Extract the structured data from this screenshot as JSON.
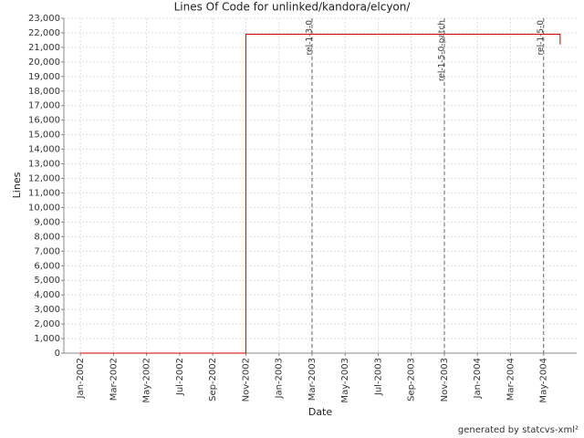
{
  "chart_data": {
    "type": "line",
    "title": "Lines Of Code for unlinked/kandora/elcyon/",
    "x_label": "Date",
    "y_label": "Lines",
    "footer": "generated by statcvs-xml²",
    "x": [
      "2002-01",
      "2002-11",
      "2002-11",
      "2004-06",
      "2004-06"
    ],
    "values": [
      0,
      0,
      21900,
      21900,
      21200
    ],
    "color": "#cc0000",
    "xlim": [
      "2001-12",
      "2004-07"
    ],
    "xticks": [
      {
        "value": "2002-01",
        "label": "Jan-2002"
      },
      {
        "value": "2002-03",
        "label": "Mar-2002"
      },
      {
        "value": "2002-05",
        "label": "May-2002"
      },
      {
        "value": "2002-07",
        "label": "Jul-2002"
      },
      {
        "value": "2002-09",
        "label": "Sep-2002"
      },
      {
        "value": "2002-11",
        "label": "Nov-2002"
      },
      {
        "value": "2003-01",
        "label": "Jan-2003"
      },
      {
        "value": "2003-03",
        "label": "Mar-2003"
      },
      {
        "value": "2003-05",
        "label": "May-2003"
      },
      {
        "value": "2003-07",
        "label": "Jul-2003"
      },
      {
        "value": "2003-09",
        "label": "Sep-2003"
      },
      {
        "value": "2003-11",
        "label": "Nov-2003"
      },
      {
        "value": "2004-01",
        "label": "Jan-2004"
      },
      {
        "value": "2004-03",
        "label": "Mar-2004"
      },
      {
        "value": "2004-05",
        "label": "May-2004"
      }
    ],
    "ylim": [
      0,
      23000
    ],
    "yticks": [
      0,
      {
        "value": 1000,
        "label": "1,000"
      },
      {
        "value": 2000,
        "label": "2,000"
      },
      {
        "value": 3000,
        "label": "3,000"
      },
      {
        "value": 4000,
        "label": "4,000"
      },
      {
        "value": 5000,
        "label": "5,000"
      },
      {
        "value": 6000,
        "label": "6,000"
      },
      {
        "value": 7000,
        "label": "7,000"
      },
      {
        "value": 8000,
        "label": "8,000"
      },
      {
        "value": 9000,
        "label": "9,000"
      },
      {
        "value": 10000,
        "label": "10,000"
      },
      {
        "value": 11000,
        "label": "11,000"
      },
      {
        "value": 12000,
        "label": "12,000"
      },
      {
        "value": 13000,
        "label": "13,000"
      },
      {
        "value": 14000,
        "label": "14,000"
      },
      {
        "value": 15000,
        "label": "15,000"
      },
      {
        "value": 16000,
        "label": "16,000"
      },
      {
        "value": 17000,
        "label": "17,000"
      },
      {
        "value": 18000,
        "label": "18,000"
      },
      {
        "value": 19000,
        "label": "19,000"
      },
      {
        "value": 20000,
        "label": "20,000"
      },
      {
        "value": 21000,
        "label": "21,000"
      },
      {
        "value": 22000,
        "label": "22,000"
      },
      {
        "value": 23000,
        "label": "23,000"
      }
    ],
    "grid": true,
    "markers": [
      {
        "label": "rel-1-3-0",
        "x": "2003-03"
      },
      {
        "label": "rel-1-5-0-patch",
        "x": "2003-11"
      },
      {
        "label": "rel-1-5-0",
        "x": "2004-05"
      }
    ]
  }
}
